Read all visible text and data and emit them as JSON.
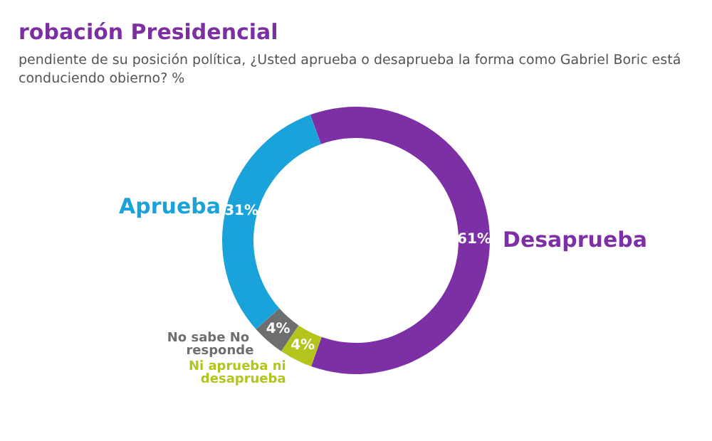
{
  "chart_data": {
    "type": "donut",
    "title": "robación Presidencial",
    "subtitle": "pendiente de su posición política, ¿Usted aprueba o desaprueba la forma como Gabriel Boric está conduciendo obierno? %",
    "categories": [
      "Desaprueba",
      "Ni aprueba ni desaprueba",
      "No sabe No responde",
      "Aprueba"
    ],
    "values": [
      61,
      4,
      4,
      31
    ],
    "value_labels": [
      "61%",
      "4%",
      "4%",
      "31%"
    ],
    "colors": [
      "#7d2fa6",
      "#b3c51d",
      "#6d6e70",
      "#1aa3db"
    ],
    "legend": false
  }
}
